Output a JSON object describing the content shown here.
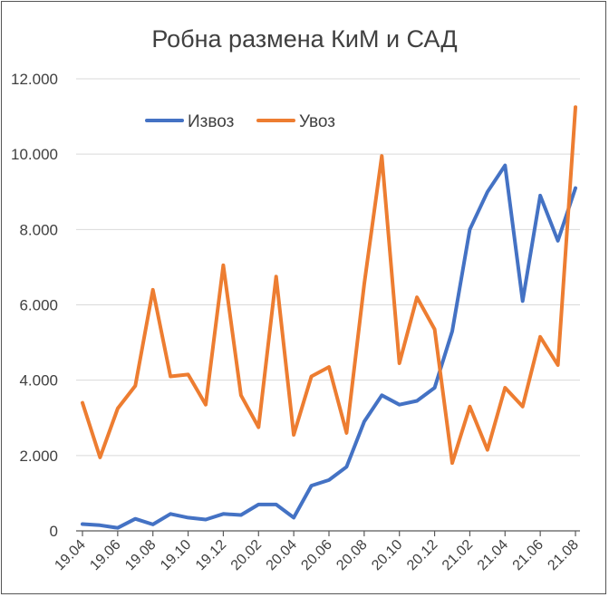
{
  "chart_data": {
    "type": "line",
    "title": "Робна размена КиМ и САД",
    "xlabel": "",
    "ylabel": "",
    "ylim": [
      0,
      12000
    ],
    "yticks": [
      0,
      2000,
      4000,
      6000,
      8000,
      10000,
      12000
    ],
    "ytick_labels": [
      "0",
      "2.000",
      "4.000",
      "6.000",
      "8.000",
      "10.000",
      "12.000"
    ],
    "x": [
      "19.04",
      "19.05",
      "19.06",
      "19.07",
      "19.08",
      "19.09",
      "19.10",
      "19.11",
      "19.12",
      "20.01",
      "20.02",
      "20.03",
      "20.04",
      "20.05",
      "20.06",
      "20.07",
      "20.08",
      "20.09",
      "20.10",
      "20.11",
      "20.12",
      "21.01",
      "21.02",
      "21.03",
      "21.04",
      "21.05",
      "21.06",
      "21.07",
      "21.08"
    ],
    "xtick_labels": [
      "19.04",
      "19.06",
      "19.08",
      "19.10",
      "19.12",
      "20.02",
      "20.04",
      "20.06",
      "20.08",
      "20.10",
      "20.12",
      "21.02",
      "21.04",
      "21.06",
      "21.08"
    ],
    "grid": true,
    "legend_position": "top-left",
    "series": [
      {
        "name": "Извоз",
        "color": "#4472c4",
        "values": [
          180,
          150,
          80,
          320,
          170,
          450,
          350,
          300,
          450,
          420,
          700,
          700,
          350,
          1200,
          1350,
          1700,
          2900,
          3600,
          3350,
          3450,
          3800,
          5300,
          8000,
          9000,
          9700,
          6100,
          8900,
          7700,
          9100
        ]
      },
      {
        "name": "Увоз",
        "color": "#ed7d31",
        "values": [
          3400,
          1950,
          3250,
          3850,
          6400,
          4100,
          4150,
          3350,
          7050,
          3600,
          2750,
          6750,
          2550,
          4100,
          4350,
          2600,
          6550,
          9950,
          4450,
          6200,
          5350,
          1800,
          3300,
          2150,
          3800,
          3300,
          5150,
          4400,
          11250
        ]
      }
    ]
  }
}
